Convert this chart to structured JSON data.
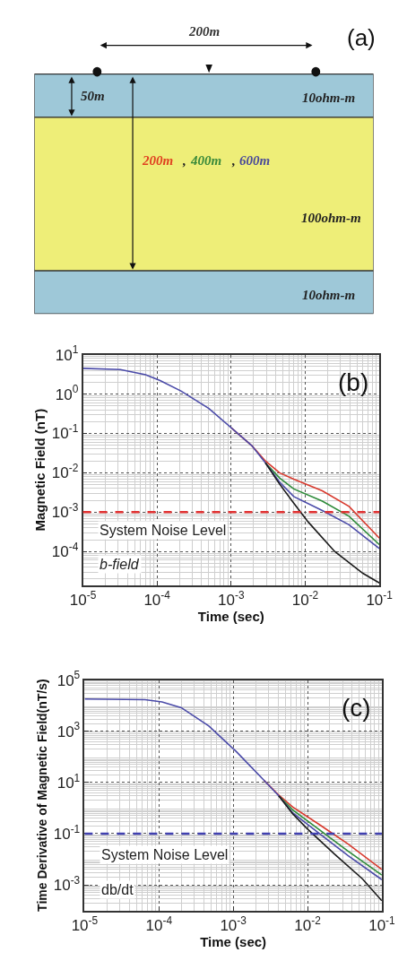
{
  "chart_data": [
    {
      "type": "other",
      "title": "(a)",
      "annotations": [
        "200m",
        "50m",
        "10ohm-m",
        "200m",
        ",",
        "400m",
        ",",
        "600m",
        "100ohm-m",
        "10ohm-m"
      ]
    },
    {
      "type": "line",
      "title": "(b)",
      "xlabel": "Time (sec)",
      "ylabel": "Magnetic Field (nT)",
      "log": "xy",
      "grid": true,
      "marker": "none",
      "line_style": "solid",
      "xlim": [
        1e-05,
        0.1
      ],
      "ylim": [
        1.4e-05,
        10
      ],
      "xticks": [
        {
          "value": 1e-05,
          "label": "10$^{-5}$"
        },
        {
          "value": 0.0001,
          "label": "10$^{-4}$"
        },
        {
          "value": 0.001,
          "label": "10$^{-3}$"
        },
        {
          "value": 0.01,
          "label": "10$^{-2}$"
        },
        {
          "value": 0.1,
          "label": "10$^{-1}$"
        }
      ],
      "yticks": [
        {
          "value": 0.0001,
          "label": "10$^{-4}$"
        },
        {
          "value": 0.001,
          "label": "10$^{-3}$"
        },
        {
          "value": 0.01,
          "label": "10$^{-2}$"
        },
        {
          "value": 0.1,
          "label": "10$^{-1}$"
        },
        {
          "value": 1,
          "label": "10$^{0}$"
        },
        {
          "value": 10,
          "label": "10$^{1}$"
        }
      ],
      "series": [
        {
          "color": "#d83a2e",
          "x": [
            0.001,
            0.0019,
            0.0029,
            0.0045,
            0.007,
            0.017,
            0.039,
            0.1
          ],
          "values": [
            0.14,
            0.049,
            0.02,
            0.01,
            0.0069,
            0.0035,
            0.0014,
            0.00022
          ]
        },
        {
          "color": "#2e8b3a",
          "x": [
            0.0029,
            0.0045,
            0.007,
            0.017,
            0.039,
            0.1
          ],
          "values": [
            0.018,
            0.0074,
            0.0039,
            0.0019,
            0.00079,
            0.00015
          ]
        },
        {
          "color": "#4a4aa8",
          "x": [
            1e-05,
            3.2e-05,
            7e-05,
            0.00011,
            0.00021,
            0.0005,
            0.001,
            0.0019,
            0.0029,
            0.0045,
            0.007,
            0.017,
            0.039,
            0.1
          ],
          "values": [
            4.5,
            4.2,
            3.1,
            2.2,
            1.2,
            0.43,
            0.14,
            0.049,
            0.018,
            0.0058,
            0.0025,
            0.0011,
            0.00048,
            0.00012
          ]
        },
        {
          "color": "#1a1a1a",
          "x": [
            0.0029,
            0.0045,
            0.007,
            0.011,
            0.025,
            0.06,
            0.1
          ],
          "values": [
            0.018,
            0.0052,
            0.0017,
            0.00056,
            0.0001,
            2.8e-05,
            1.6e-05
          ]
        }
      ],
      "ref_lines": [
        {
          "axis": "y",
          "value": 0.001,
          "color": "#e03030",
          "line_style": "dashed"
        }
      ],
      "annotations": [
        "System Noise Level",
        "b-field"
      ]
    },
    {
      "type": "line",
      "title": "(c)",
      "xlabel": "Time (sec)",
      "ylabel": "Time Derivative of Magnetic Field(nT/s)",
      "log": "xy",
      "grid": true,
      "marker": "none",
      "line_style": "solid",
      "xlim": [
        1e-05,
        0.1
      ],
      "ylim": [
        0.0001,
        100000
      ],
      "xticks": [
        {
          "value": 1e-05,
          "label": "10$^{-5}$"
        },
        {
          "value": 0.0001,
          "label": "10$^{-4}$"
        },
        {
          "value": 0.001,
          "label": "10$^{-3}$"
        },
        {
          "value": 0.01,
          "label": "10$^{-2}$"
        },
        {
          "value": 0.1,
          "label": "10$^{-1}$"
        }
      ],
      "yticks": [
        {
          "value": 0.001,
          "label": "10$^{-3}$"
        },
        {
          "value": 0.1,
          "label": "10$^{-1}$"
        },
        {
          "value": 10,
          "label": "10$^{1}$"
        },
        {
          "value": 1000,
          "label": "10$^{3}$"
        },
        {
          "value": 100000,
          "label": "10$^{5}$"
        }
      ],
      "series": [
        {
          "color": "#d83a2e",
          "x": [
            0.0026,
            0.0041,
            0.0063,
            0.015,
            0.035,
            0.1
          ],
          "values": [
            12,
            3.2,
            1.1,
            0.21,
            0.04,
            0.004
          ]
        },
        {
          "color": "#2e8b3a",
          "x": [
            0.0041,
            0.0063,
            0.015,
            0.035,
            0.1
          ],
          "values": [
            3.0,
            0.85,
            0.13,
            0.021,
            0.0024
          ]
        },
        {
          "color": "#4a4aa8",
          "x": [
            1e-05,
            6.5e-05,
            0.00011,
            0.0002,
            0.00047,
            0.0011,
            0.0026,
            0.0041,
            0.0063,
            0.015,
            0.035,
            0.1
          ],
          "values": [
            18000,
            17000,
            14000,
            8300,
            1600,
            160,
            12,
            3.0,
            0.65,
            0.093,
            0.014,
            0.0016
          ]
        },
        {
          "color": "#1a1a1a",
          "x": [
            0.0041,
            0.0063,
            0.0098,
            0.023,
            0.055,
            0.1
          ],
          "values": [
            3.0,
            0.6,
            0.16,
            0.016,
            0.0017,
            0.00024
          ]
        }
      ],
      "ref_lines": [
        {
          "axis": "y",
          "value": 0.1,
          "color": "#4040b0",
          "line_style": "dashed"
        }
      ],
      "annotations": [
        "System Noise Level",
        "db/dt"
      ]
    }
  ]
}
